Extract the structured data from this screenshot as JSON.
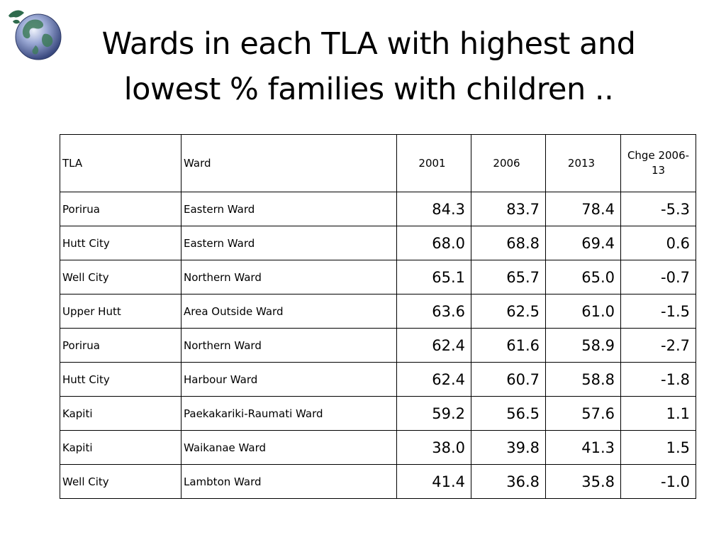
{
  "title": {
    "line1": "Wards in each TLA with highest and",
    "line2": "lowest % families with children .."
  },
  "logo": {
    "icon": "globe-icon"
  },
  "colors": {
    "globe_blue": "#6b7fb8",
    "globe_land": "#3d7a5a",
    "text": "#000000"
  },
  "table": {
    "headers": {
      "tla": "TLA",
      "ward": "Ward",
      "y2001": "2001",
      "y2006": "2006",
      "y2013": "2013",
      "change": "Chge 2006-13"
    },
    "rows": [
      {
        "tla": "Porirua",
        "ward": "Eastern Ward",
        "y2001": "84.3",
        "y2006": "83.7",
        "y2013": "78.4",
        "change": "-5.3"
      },
      {
        "tla": "Hutt City",
        "ward": "Eastern Ward",
        "y2001": "68.0",
        "y2006": "68.8",
        "y2013": "69.4",
        "change": "0.6"
      },
      {
        "tla": "Well City",
        "ward": "Northern Ward",
        "y2001": "65.1",
        "y2006": "65.7",
        "y2013": "65.0",
        "change": "-0.7"
      },
      {
        "tla": "Upper Hutt",
        "ward": "Area Outside Ward",
        "y2001": "63.6",
        "y2006": "62.5",
        "y2013": "61.0",
        "change": "-1.5"
      },
      {
        "tla": "Porirua",
        "ward": "Northern Ward",
        "y2001": "62.4",
        "y2006": "61.6",
        "y2013": "58.9",
        "change": "-2.7"
      },
      {
        "tla": "Hutt City",
        "ward": "Harbour Ward",
        "y2001": "62.4",
        "y2006": "60.7",
        "y2013": "58.8",
        "change": "-1.8"
      },
      {
        "tla": "Kapiti",
        "ward": "Paekakariki-Raumati Ward",
        "y2001": "59.2",
        "y2006": "56.5",
        "y2013": "57.6",
        "change": "1.1"
      },
      {
        "tla": "Kapiti",
        "ward": "Waikanae Ward",
        "y2001": "38.0",
        "y2006": "39.8",
        "y2013": "41.3",
        "change": "1.5"
      },
      {
        "tla": "Well City",
        "ward": "Lambton Ward",
        "y2001": "41.4",
        "y2006": "36.8",
        "y2013": "35.8",
        "change": "-1.0"
      }
    ]
  }
}
